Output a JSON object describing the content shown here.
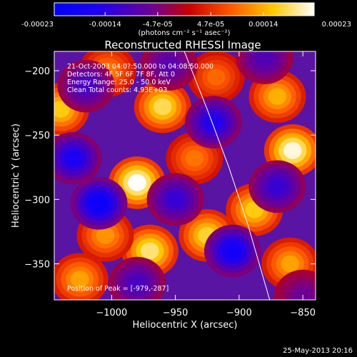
{
  "colorbar": {
    "tick_labels": [
      "-0.00023",
      "-0.00014",
      "-4.7e-05",
      "4.7e-05",
      "0.00014",
      "0.00023"
    ],
    "tick_values": [
      -0.00023,
      -0.00014,
      -4.7e-05,
      4.7e-05,
      0.00014,
      0.00023
    ],
    "range": [
      -0.00023,
      0.00023
    ],
    "units": "(photons cm⁻² s⁻¹ asec⁻²)"
  },
  "chart_data": {
    "type": "heatmap",
    "title": "Reconstructed RHESSI Image",
    "xlabel": "Heliocentric X (arcsec)",
    "ylabel": "Heliocentric Y (arcsec)",
    "xlim": [
      -1045,
      -840
    ],
    "ylim": [
      -378,
      -185
    ],
    "x_ticks": [
      -1000,
      -950,
      -900,
      -850
    ],
    "x_tick_labels": [
      "−1000",
      "−950",
      "−900",
      "−850"
    ],
    "y_ticks": [
      -200,
      -250,
      -300,
      -350
    ],
    "y_tick_labels": [
      "−200",
      "−250",
      "−300",
      "−350"
    ],
    "color_scale": "rainbow (blue-purple-red-orange-yellow-white)",
    "limb_curve": [
      [
        -943,
        -185
      ],
      [
        -925,
        -230
      ],
      [
        -908,
        -275
      ],
      [
        -893,
        -320
      ],
      [
        -876,
        -378
      ]
    ],
    "blobs": [
      {
        "x": -980,
        "y": -287,
        "value": 0.00023
      },
      {
        "x": -960,
        "y": -228,
        "value": 0.00018
      },
      {
        "x": -1040,
        "y": -230,
        "value": 0.00016
      },
      {
        "x": -970,
        "y": -340,
        "value": 0.00019
      },
      {
        "x": -858,
        "y": -262,
        "value": 0.00022
      },
      {
        "x": -870,
        "y": -220,
        "value": 0.00014
      },
      {
        "x": -888,
        "y": -308,
        "value": 0.00016
      },
      {
        "x": -925,
        "y": -328,
        "value": 0.00017
      },
      {
        "x": -1005,
        "y": -328,
        "value": 0.00012
      },
      {
        "x": -935,
        "y": -268,
        "value": 0.0001
      },
      {
        "x": -860,
        "y": -350,
        "value": 0.00013
      },
      {
        "x": -1025,
        "y": -362,
        "value": 0.00013
      },
      {
        "x": -1003,
        "y": -200,
        "value": 0.0001
      },
      {
        "x": -918,
        "y": -205,
        "value": 9e-05
      },
      {
        "x": -1010,
        "y": -303,
        "value": -0.0002
      },
      {
        "x": -1030,
        "y": -268,
        "value": -0.00016
      },
      {
        "x": -905,
        "y": -340,
        "value": -0.00018
      },
      {
        "x": -920,
        "y": -240,
        "value": -0.00015
      },
      {
        "x": -1020,
        "y": -212,
        "value": -0.0001
      },
      {
        "x": -870,
        "y": -290,
        "value": -0.00012
      },
      {
        "x": -950,
        "y": -300,
        "value": -0.00012
      },
      {
        "x": -880,
        "y": -190,
        "value": -9e-05
      },
      {
        "x": -980,
        "y": -365,
        "value": -0.0001
      },
      {
        "x": -955,
        "y": -195,
        "value": -8e-05
      },
      {
        "x": -850,
        "y": -375,
        "value": -6e-05
      }
    ]
  },
  "info": {
    "line1": "21-Oct-2003 04:0?:50.000 to 04:08:50.000",
    "line2": "Detectors: 4F 5F 6F 7F 8F, Att 0",
    "line3": "Energy Range: 25.0 - 50.0 keV",
    "line4": "Clean    Total counts: 4.93E+03"
  },
  "peak_label": "Position of Peak = [-979,-287]",
  "footer_date": "25-May-2013 20:16"
}
